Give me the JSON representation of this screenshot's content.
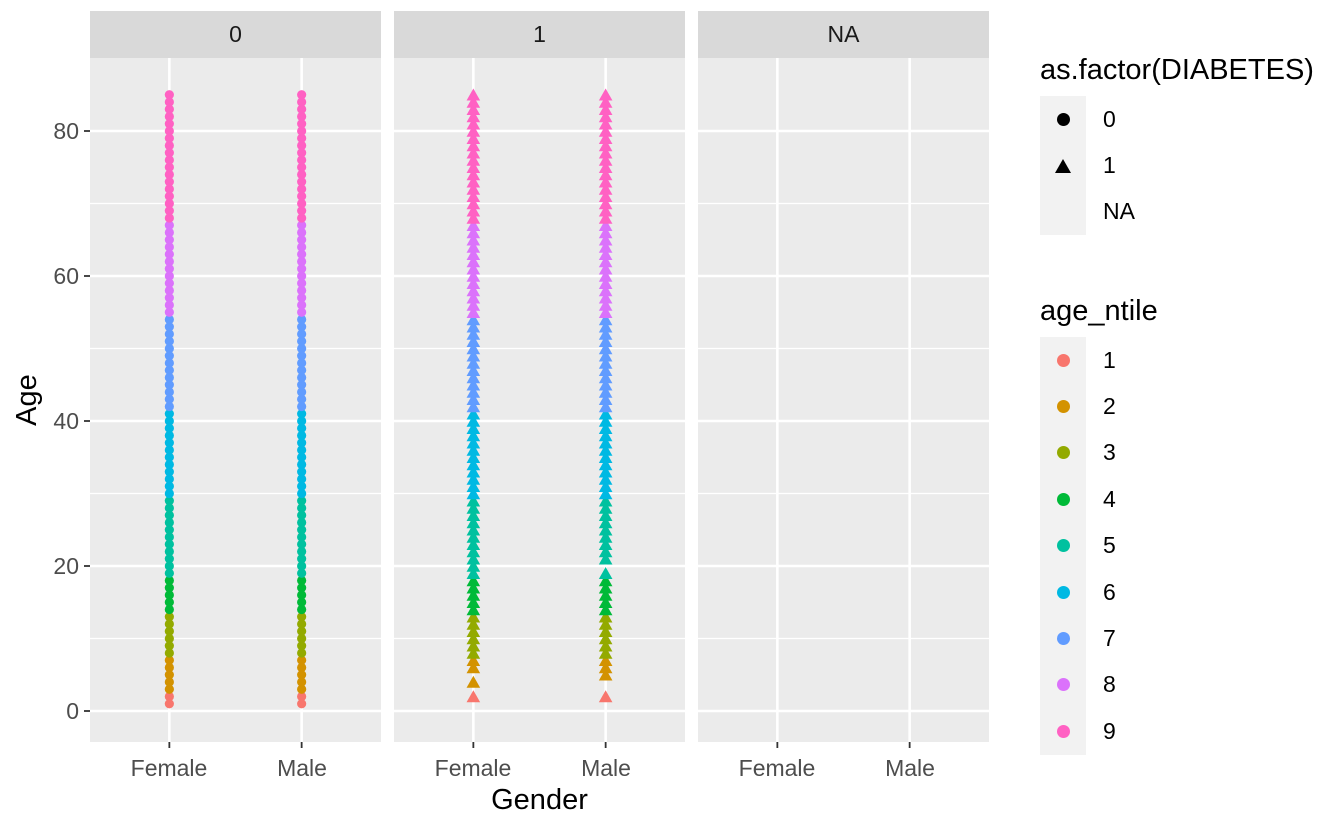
{
  "chart_data": {
    "type": "scatter",
    "description": "Faceted dot plot of Age by Gender, faceted by diabetes status, shape by as.factor(DIABETES), color by age_ntile",
    "x_axis": {
      "title": "Gender",
      "categories": [
        "Female",
        "Male"
      ]
    },
    "y_axis": {
      "title": "Age",
      "ticks": [
        0,
        20,
        40,
        60,
        80
      ],
      "tick_labels": [
        "0",
        "20",
        "40",
        "60",
        "80"
      ],
      "minor_gridlines": [
        10,
        30,
        50,
        70
      ],
      "range_shown": [
        -4,
        89
      ]
    },
    "facet": {
      "variable": "as.factor(DIABETES)"
    },
    "facets": [
      {
        "label": "0",
        "shape": "circle",
        "columns": [
          {
            "gender": "Female",
            "age_runs": [
              [
                1,
                85
              ]
            ]
          },
          {
            "gender": "Male",
            "age_runs": [
              [
                1,
                85
              ]
            ]
          }
        ]
      },
      {
        "label": "1",
        "shape": "triangle",
        "columns": [
          {
            "gender": "Female",
            "age_runs": [
              [
                2,
                2
              ],
              [
                4,
                4
              ],
              [
                6,
                85
              ]
            ]
          },
          {
            "gender": "Male",
            "age_runs": [
              [
                2,
                2
              ],
              [
                5,
                19
              ],
              [
                21,
                85
              ]
            ]
          }
        ]
      },
      {
        "label": "NA",
        "shape": "none",
        "columns": [
          {
            "gender": "Female",
            "age_runs": []
          },
          {
            "gender": "Male",
            "age_runs": []
          }
        ]
      }
    ],
    "color_bands": [
      {
        "ntile": "1",
        "color": "#F8766D",
        "age_min": 1,
        "age_max": 2
      },
      {
        "ntile": "2",
        "color": "#D39200",
        "age_min": 3,
        "age_max": 7
      },
      {
        "ntile": "3",
        "color": "#93AA00",
        "age_min": 8,
        "age_max": 13
      },
      {
        "ntile": "4",
        "color": "#00BA38",
        "age_min": 14,
        "age_max": 18
      },
      {
        "ntile": "5",
        "color": "#00C19F",
        "age_min": 19,
        "age_max": 29
      },
      {
        "ntile": "6",
        "color": "#00B9E3",
        "age_min": 30,
        "age_max": 41
      },
      {
        "ntile": "7",
        "color": "#619CFF",
        "age_min": 42,
        "age_max": 54
      },
      {
        "ntile": "8",
        "color": "#DB72FB",
        "age_min": 55,
        "age_max": 67
      },
      {
        "ntile": "9",
        "color": "#FF61C3",
        "age_min": 68,
        "age_max": 85
      }
    ],
    "legends": [
      {
        "title": "as.factor(DIABETES)",
        "entries": [
          {
            "label": "0",
            "glyph": "circle",
            "color": "#000000"
          },
          {
            "label": "1",
            "glyph": "triangle",
            "color": "#000000"
          },
          {
            "label": "NA",
            "glyph": "none",
            "color": "#000000"
          }
        ]
      },
      {
        "title": "age_ntile",
        "entries": [
          {
            "label": "1",
            "glyph": "dot",
            "color": "#F8766D"
          },
          {
            "label": "2",
            "glyph": "dot",
            "color": "#D39200"
          },
          {
            "label": "3",
            "glyph": "dot",
            "color": "#93AA00"
          },
          {
            "label": "4",
            "glyph": "dot",
            "color": "#00BA38"
          },
          {
            "label": "5",
            "glyph": "dot",
            "color": "#00C19F"
          },
          {
            "label": "6",
            "glyph": "dot",
            "color": "#00B9E3"
          },
          {
            "label": "7",
            "glyph": "dot",
            "color": "#619CFF"
          },
          {
            "label": "8",
            "glyph": "dot",
            "color": "#DB72FB"
          },
          {
            "label": "9",
            "glyph": "dot",
            "color": "#FF61C3"
          }
        ]
      }
    ],
    "theme": {
      "panel_bg": "#EBEBEB",
      "strip_bg": "#D9D9D9",
      "grid_color": "#FFFFFF",
      "legend_key_bg": "#F2F2F2",
      "axis_tick_color": "#333333",
      "tick_label_color": "#4D4D4D",
      "text_color": "#1A1A1A"
    }
  }
}
